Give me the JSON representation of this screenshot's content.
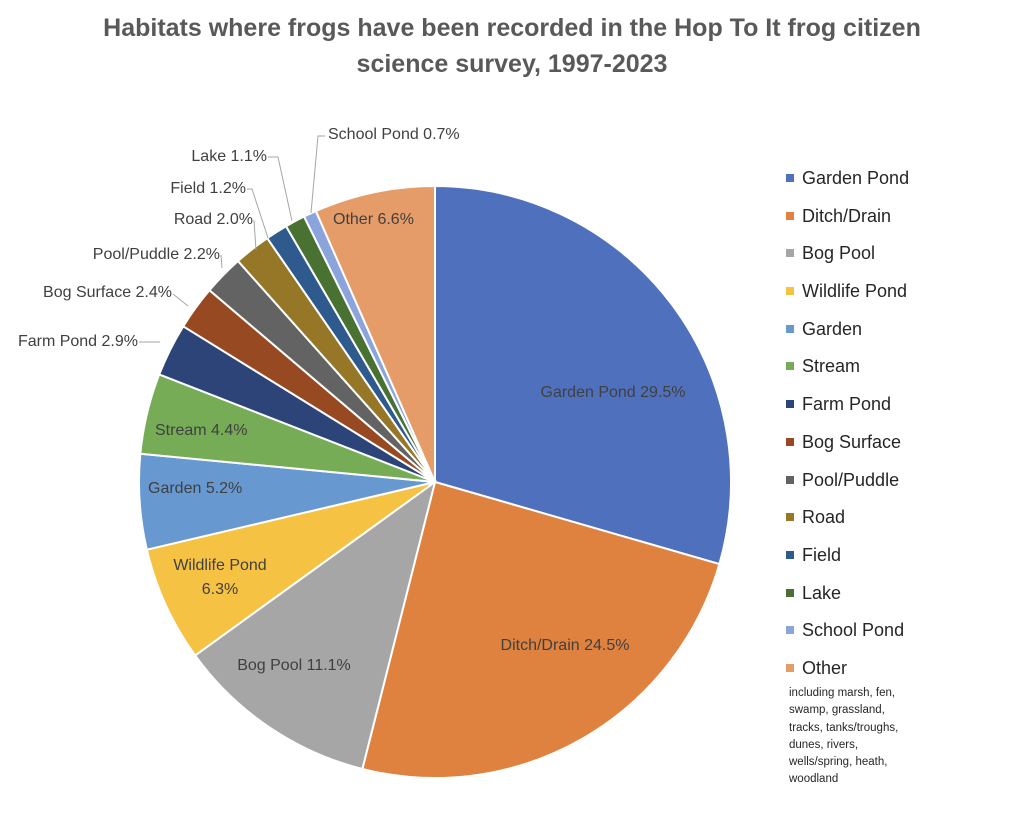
{
  "chart_data": {
    "type": "pie",
    "title_lines": [
      "Habitats where frogs have been recorded in the Hop To It frog citizen",
      "science survey, 1997-2023"
    ],
    "start_angle_deg": 0,
    "direction": "clockwise",
    "slices": [
      {
        "name": "Garden Pond",
        "value": 29.5,
        "label": "Garden Pond 29.5%",
        "color": "#4f71bd"
      },
      {
        "name": "Ditch/Drain",
        "value": 24.5,
        "label": "Ditch/Drain 24.5%",
        "color": "#e0823f"
      },
      {
        "name": "Bog Pool",
        "value": 11.1,
        "label": "Bog Pool 11.1%",
        "color": "#a6a6a6"
      },
      {
        "name": "Wildlife Pond",
        "value": 6.3,
        "label_lines": [
          "Wildlife Pond",
          "6.3%"
        ],
        "color": "#f6c243"
      },
      {
        "name": "Garden",
        "value": 5.2,
        "label": "Garden 5.2%",
        "color": "#6799d0"
      },
      {
        "name": "Stream",
        "value": 4.4,
        "label": "Stream 4.4%",
        "color": "#76ac55"
      },
      {
        "name": "Farm Pond",
        "value": 2.9,
        "label": "Farm Pond 2.9%",
        "color": "#2d4478"
      },
      {
        "name": "Bog Surface",
        "value": 2.4,
        "label": "Bog Surface 2.4%",
        "color": "#974a22"
      },
      {
        "name": "Pool/Puddle",
        "value": 2.2,
        "label": "Pool/Puddle 2.2%",
        "color": "#636363"
      },
      {
        "name": "Road",
        "value": 2.0,
        "label": "Road 2.0%",
        "color": "#957727"
      },
      {
        "name": "Field",
        "value": 1.2,
        "label": "Field 1.2%",
        "color": "#2f5a8d"
      },
      {
        "name": "Lake",
        "value": 1.1,
        "label": "Lake 1.1%",
        "color": "#497232"
      },
      {
        "name": "School Pond",
        "value": 0.7,
        "label": "School Pond 0.7%",
        "color": "#8ba5dc"
      },
      {
        "name": "Other",
        "value": 6.6,
        "label": "Other 6.6%",
        "color": "#e69c68"
      }
    ],
    "legend": {
      "position": "right",
      "items": [
        "Garden Pond",
        "Ditch/Drain",
        "Bog Pool",
        "Wildlife Pond",
        "Garden",
        "Stream",
        "Farm Pond",
        "Bog Surface",
        "Pool/Puddle",
        "Road",
        "Field",
        "Lake",
        "School Pond",
        "Other"
      ],
      "note_lines": [
        "including marsh, fen,",
        "swamp, grassland,",
        "tracks, tanks/troughs,",
        "dunes, rivers,",
        "wells/spring, heath,",
        "woodland"
      ]
    }
  }
}
